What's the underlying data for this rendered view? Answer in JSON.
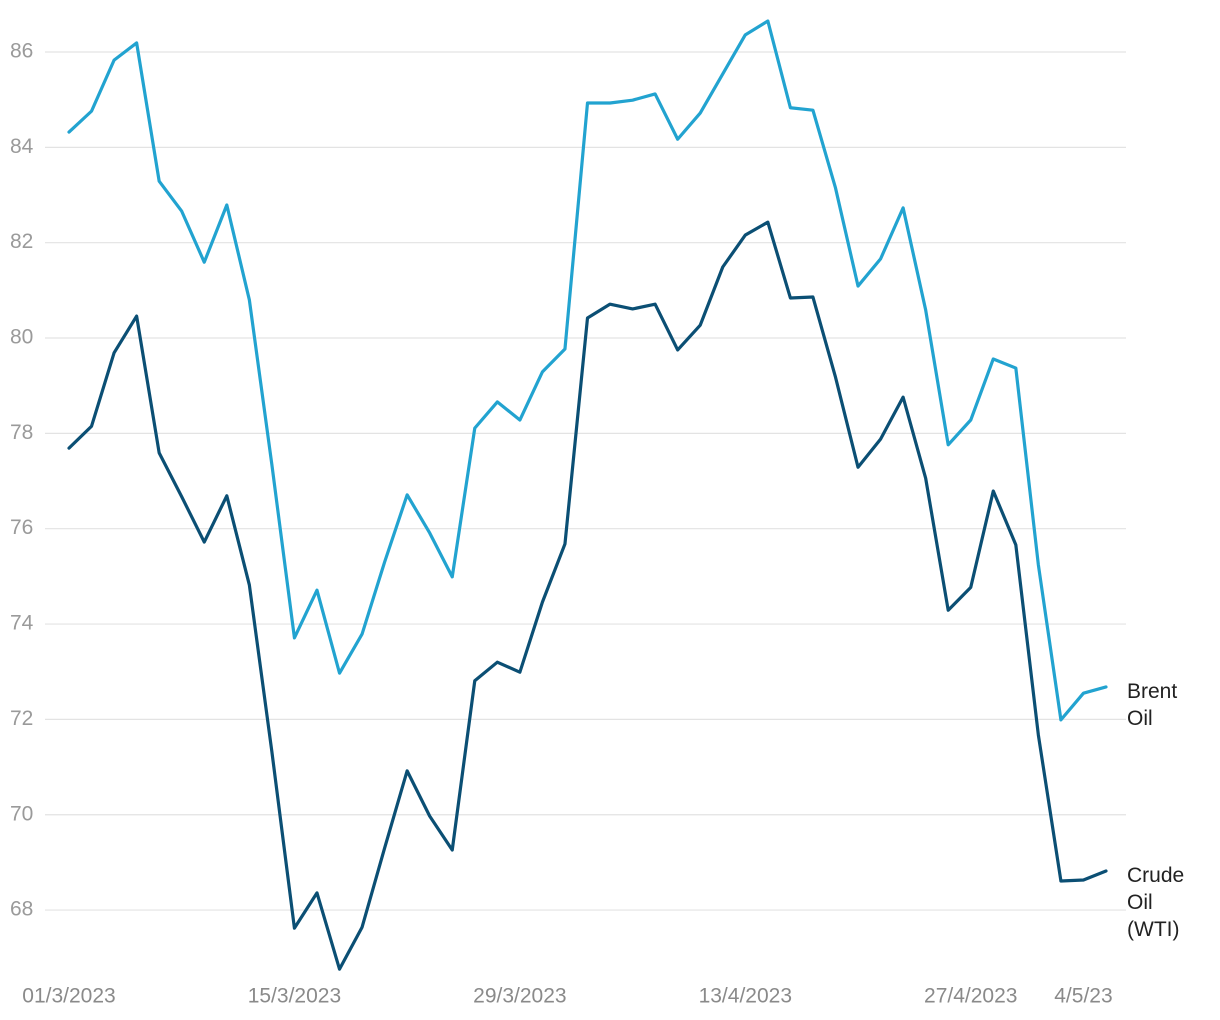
{
  "chart_data": {
    "type": "line",
    "categories": [
      "01/3/2023",
      null,
      null,
      null,
      null,
      null,
      null,
      null,
      null,
      null,
      "15/3/2023",
      null,
      null,
      null,
      null,
      null,
      null,
      null,
      null,
      null,
      "29/3/2023",
      null,
      null,
      null,
      null,
      null,
      null,
      null,
      null,
      null,
      "13/4/2023",
      null,
      null,
      null,
      null,
      null,
      null,
      null,
      null,
      null,
      "27/4/2023",
      null,
      null,
      null,
      null,
      "4/5/23",
      null
    ],
    "series": [
      {
        "name": "Brent Oil",
        "color": "#22a3d0",
        "values": [
          84.32,
          84.76,
          85.83,
          86.19,
          83.29,
          82.66,
          81.59,
          82.79,
          80.8,
          77.34,
          73.71,
          74.71,
          72.97,
          73.79,
          75.3,
          76.71,
          75.91,
          74.99,
          78.11,
          78.66,
          78.28,
          79.29,
          79.77,
          84.93,
          84.93,
          84.99,
          85.12,
          84.17,
          84.72,
          85.54,
          86.36,
          86.65,
          84.83,
          84.78,
          83.15,
          81.09,
          81.66,
          82.73,
          80.59,
          77.76,
          78.28,
          79.56,
          79.37,
          75.24,
          71.99,
          72.55,
          72.68
        ]
      },
      {
        "name": "Crude Oil (WTI)",
        "color": "#0b4f74",
        "values": [
          77.69,
          78.15,
          79.69,
          80.46,
          77.59,
          76.67,
          75.72,
          76.69,
          74.82,
          71.32,
          67.62,
          68.36,
          66.76,
          67.64,
          69.3,
          70.92,
          69.97,
          69.26,
          72.81,
          73.2,
          72.99,
          74.46,
          75.68,
          80.42,
          80.71,
          80.61,
          80.71,
          79.75,
          80.27,
          81.49,
          82.16,
          82.43,
          80.84,
          80.86,
          79.18,
          77.29,
          77.88,
          78.76,
          77.06,
          74.29,
          74.77,
          76.79,
          75.66,
          71.67,
          68.61,
          68.63,
          68.82
        ]
      }
    ],
    "ylim": [
      66.6,
      86.7
    ],
    "yticks": [
      68,
      70,
      72,
      74,
      76,
      78,
      80,
      82,
      84,
      86
    ],
    "grid": true
  }
}
